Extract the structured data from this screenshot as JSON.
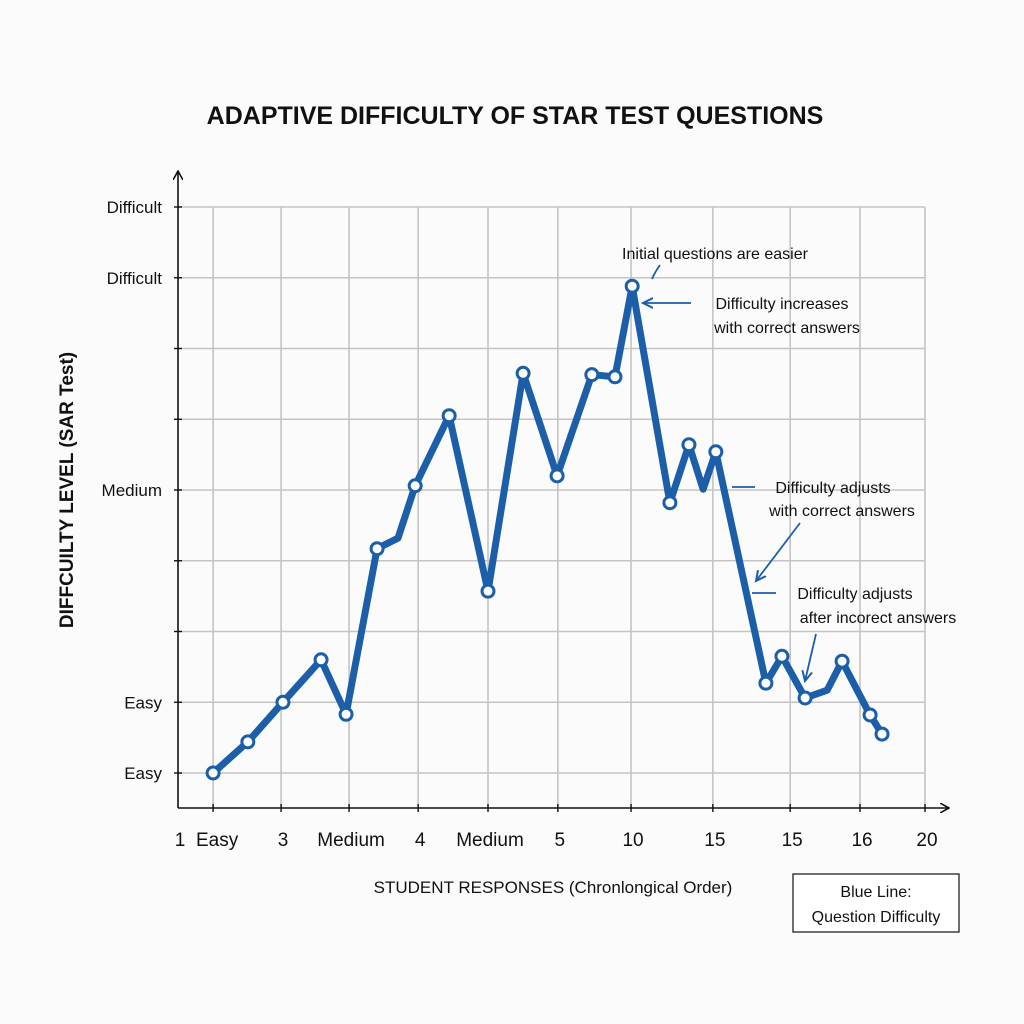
{
  "colors": {
    "line": "#1c5fa8",
    "grid": "#c4c4c4",
    "axis": "#111111",
    "background": "#fbfbfb"
  },
  "chart_data": {
    "type": "line",
    "title": "ADAPTIVE DIFFICULTY OF STAR TEST QUESTIONS",
    "xlabel": "STUDENT RESPONSES (Chronlongical Order)",
    "ylabel": "DIFFCUILTY LEVEL (SAR Test)",
    "xlim": [
      0,
      20
    ],
    "ylim": [
      -0.5,
      8
    ],
    "grid": true,
    "x_gridlines": [
      0.94,
      2.76,
      4.58,
      6.43,
      8.3,
      10.17,
      12.13,
      14.32,
      16.39,
      18.26,
      20
    ],
    "y_gridlines": [
      0,
      1,
      2,
      3,
      4,
      5,
      6,
      7,
      8
    ],
    "x_ticks": [
      {
        "x": 0,
        "label": "1"
      },
      {
        "x": 0.94,
        "label": "Easy"
      },
      {
        "x": 2.76,
        "label": "3"
      },
      {
        "x": 4.58,
        "label": "Medium"
      },
      {
        "x": 6.43,
        "label": "4"
      },
      {
        "x": 8.3,
        "label": "Medium"
      },
      {
        "x": 10.17,
        "label": "5"
      },
      {
        "x": 12.13,
        "label": "10"
      },
      {
        "x": 14.32,
        "label": "15"
      },
      {
        "x": 16.39,
        "label": "15"
      },
      {
        "x": 18.26,
        "label": "16"
      },
      {
        "x": 20,
        "label": "20"
      }
    ],
    "y_ticks": [
      {
        "y": 8,
        "label": "Difficult"
      },
      {
        "y": 7,
        "label": "Difficult"
      },
      {
        "y": 6,
        "label": ""
      },
      {
        "y": 5,
        "label": ""
      },
      {
        "y": 4,
        "label": "Medium"
      },
      {
        "y": 3,
        "label": ""
      },
      {
        "y": 2,
        "label": ""
      },
      {
        "y": 1,
        "label": "Easy"
      },
      {
        "y": 0,
        "label": "Easy"
      }
    ],
    "series": [
      {
        "name": "Question Difficulty",
        "points": [
          {
            "x": 0.94,
            "y": 0,
            "marker": true
          },
          {
            "x": 1.87,
            "y": 0.44,
            "marker": true
          },
          {
            "x": 2.81,
            "y": 1.0,
            "marker": true
          },
          {
            "x": 3.83,
            "y": 1.6,
            "marker": true
          },
          {
            "x": 4.5,
            "y": 0.83,
            "marker": true
          },
          {
            "x": 5.33,
            "y": 3.17,
            "marker": true
          },
          {
            "x": 5.89,
            "y": 3.32,
            "marker": false
          },
          {
            "x": 6.35,
            "y": 4.06,
            "marker": true
          },
          {
            "x": 7.26,
            "y": 5.05,
            "marker": true
          },
          {
            "x": 8.3,
            "y": 2.57,
            "marker": true
          },
          {
            "x": 9.24,
            "y": 5.65,
            "marker": true
          },
          {
            "x": 10.15,
            "y": 4.2,
            "marker": true
          },
          {
            "x": 11.08,
            "y": 5.63,
            "marker": true
          },
          {
            "x": 11.7,
            "y": 5.6,
            "marker": true
          },
          {
            "x": 12.16,
            "y": 6.88,
            "marker": true
          },
          {
            "x": 13.17,
            "y": 3.82,
            "marker": true
          },
          {
            "x": 13.68,
            "y": 4.64,
            "marker": true
          },
          {
            "x": 14.06,
            "y": 4.01,
            "marker": false
          },
          {
            "x": 14.4,
            "y": 4.54,
            "marker": true
          },
          {
            "x": 15.74,
            "y": 1.27,
            "marker": true
          },
          {
            "x": 16.17,
            "y": 1.65,
            "marker": true
          },
          {
            "x": 16.79,
            "y": 1.06,
            "marker": true
          },
          {
            "x": 17.38,
            "y": 1.17,
            "marker": false
          },
          {
            "x": 17.78,
            "y": 1.58,
            "marker": true
          },
          {
            "x": 18.53,
            "y": 0.82,
            "marker": true
          },
          {
            "x": 18.85,
            "y": 0.55,
            "marker": true
          }
        ]
      }
    ],
    "annotations": [
      {
        "id": "initial",
        "lines": [
          "Initial questions are easier"
        ]
      },
      {
        "id": "increases",
        "lines": [
          "Difficulty increases",
          "with correct answers"
        ]
      },
      {
        "id": "adjusts-correct",
        "lines": [
          "Difficulty adjusts",
          "with correct answers"
        ]
      },
      {
        "id": "adjusts-incorrect",
        "lines": [
          "Difficulty adjusts",
          "after incorect answers"
        ]
      }
    ],
    "legend": {
      "position": "bottom-right",
      "lines": [
        "Blue Line:",
        "Question Difficulty"
      ]
    }
  }
}
